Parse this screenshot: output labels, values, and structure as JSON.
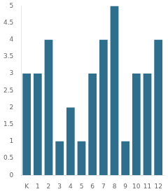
{
  "chart_data": {
    "type": "bar",
    "categories": [
      "K",
      "1",
      "2",
      "3",
      "4",
      "5",
      "6",
      "7",
      "8",
      "9",
      "10",
      "11",
      "12"
    ],
    "values": [
      3,
      3,
      4,
      1,
      2,
      1,
      3,
      4,
      5,
      1,
      3,
      3,
      4
    ],
    "color": "#2e6f8e",
    "ylim": [
      0,
      5
    ],
    "yticks": [
      0,
      0.5,
      1,
      1.5,
      2,
      2.5,
      3,
      3.5,
      4,
      4.5,
      5
    ],
    "grid": false
  }
}
